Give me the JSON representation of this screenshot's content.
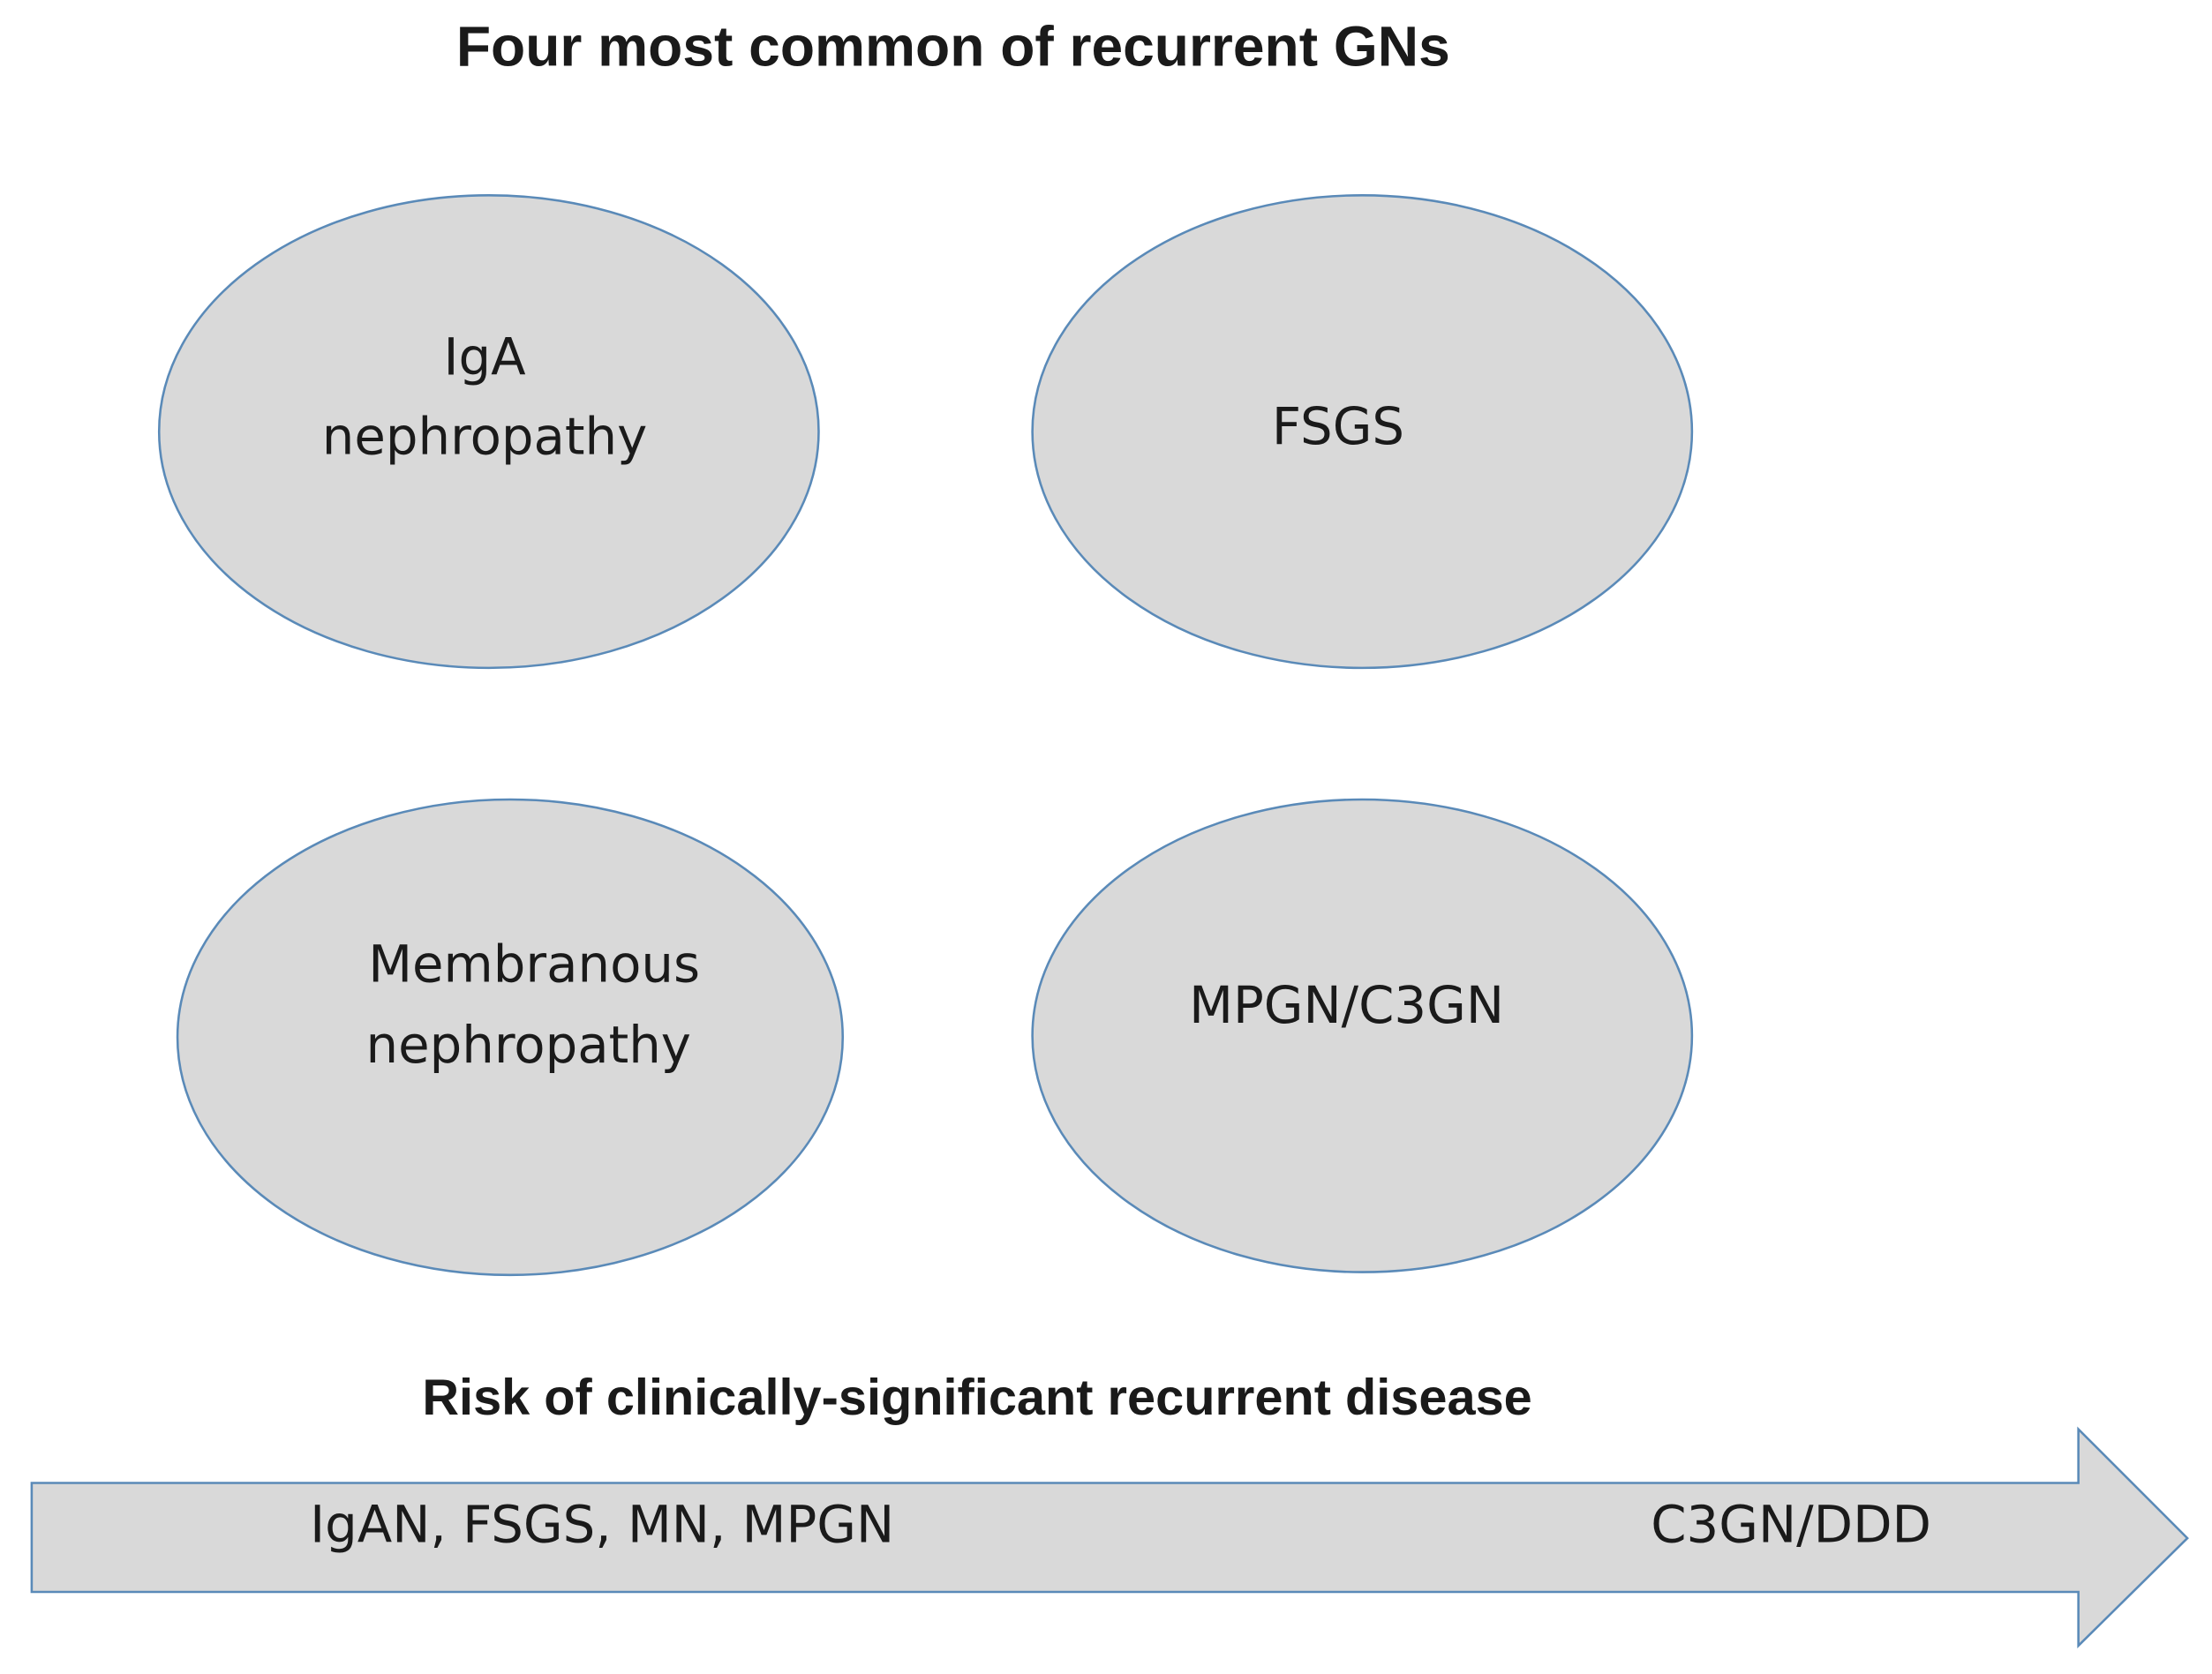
{
  "title": "Four most common of recurrent GNs",
  "nodes": [
    {
      "label": [
        "IgA",
        "nephropathy"
      ]
    },
    {
      "label": [
        "FSGS"
      ]
    },
    {
      "label": [
        "Membranous",
        "nephropathy"
      ]
    },
    {
      "label": [
        "MPGN/C3GN"
      ]
    }
  ],
  "arrow": {
    "title": "Risk of clinically-significant recurrent disease",
    "start_label": "IgAN, FSGS, MN, MPGN",
    "end_label": "C3GN/DDD"
  }
}
